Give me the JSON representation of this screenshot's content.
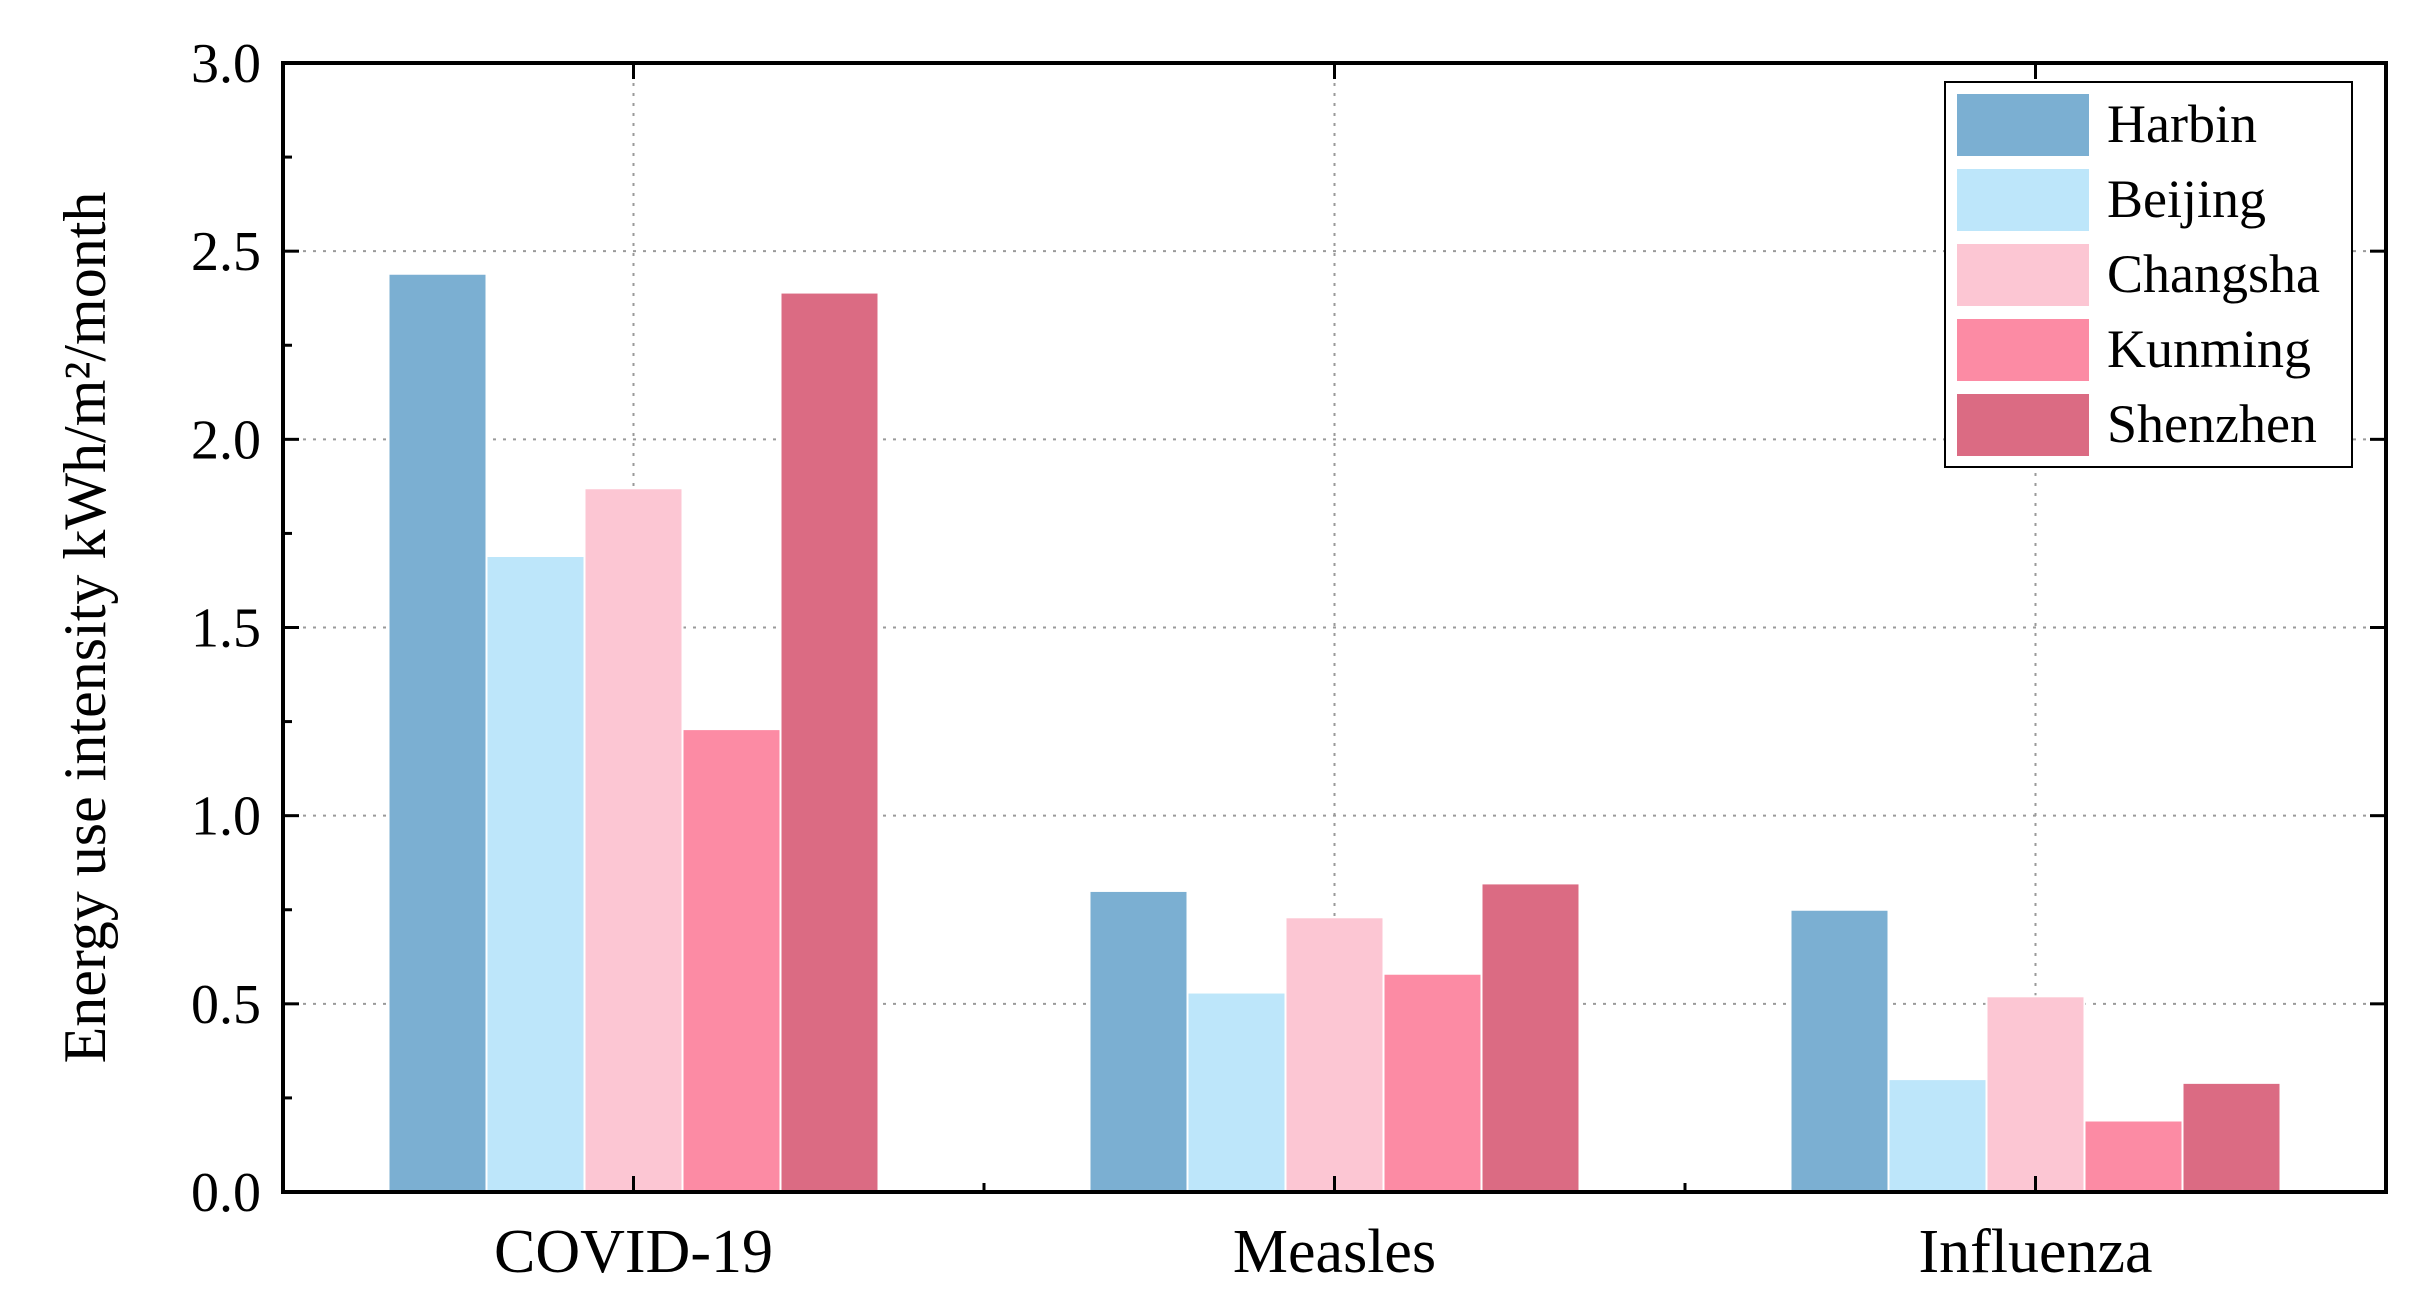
{
  "chart_data": {
    "type": "bar",
    "title": "",
    "xlabel": "",
    "ylabel": "Energy use intensity kWh/m²/month",
    "categories": [
      "COVID-19",
      "Measles",
      "Influenza"
    ],
    "series": [
      {
        "name": "Harbin",
        "color": "#7BAFD2",
        "values": [
          2.44,
          0.8,
          0.75
        ]
      },
      {
        "name": "Beijing",
        "color": "#BDE6FA",
        "values": [
          1.69,
          0.53,
          0.3
        ]
      },
      {
        "name": "Changsha",
        "color": "#FCC6D3",
        "values": [
          1.87,
          0.73,
          0.52
        ]
      },
      {
        "name": "Kunming",
        "color": "#FC8BA4",
        "values": [
          1.23,
          0.58,
          0.19
        ]
      },
      {
        "name": "Shenzhen",
        "color": "#DB6B83",
        "values": [
          2.39,
          0.82,
          0.29
        ]
      }
    ],
    "ylim": [
      0,
      3.0
    ],
    "yticks": [
      0.0,
      0.5,
      1.0,
      1.5,
      2.0,
      2.5,
      3.0
    ],
    "ytick_labels": [
      "0.0",
      "0.5",
      "1.0",
      "1.5",
      "2.0",
      "2.5",
      "3.0"
    ],
    "grid": true,
    "legend_position": "top-right"
  }
}
